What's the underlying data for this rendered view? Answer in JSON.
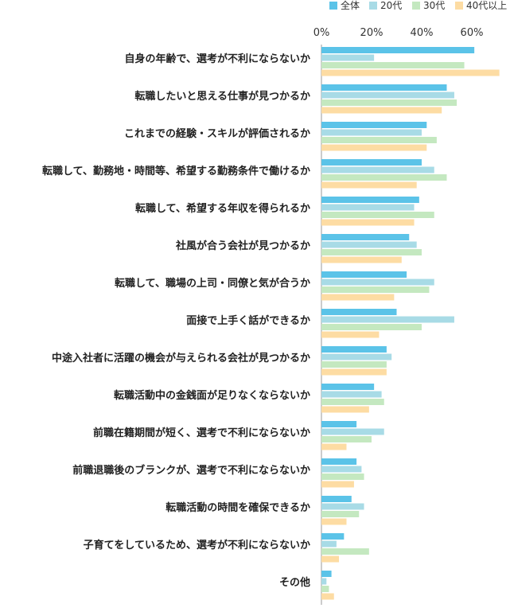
{
  "chart_data": {
    "type": "bar",
    "orientation": "horizontal",
    "categories": [
      "自身の年齢で、選考が不利にならないか",
      "転職したいと思える仕事が見つかるか",
      "これまでの経験・スキルが評価されるか",
      "転職して、勤務地・時間等、希望する勤務条件で働けるか",
      "転職して、希望する年収を得られるか",
      "社風が合う会社が見つかるか",
      "転職して、職場の上司・同僚と気が合うか",
      "面接で上手く話ができるか",
      "中途入社者に活躍の機会が与えられる会社が見つかるか",
      "転職活動中の金銭面が足りなくならないか",
      "前職在籍期間が短く、選考で不利にならないか",
      "前職退職後のブランクが、選考で不利にならないか",
      "転職活動の時間を確保できるか",
      "子育てをしているため、選考が不利にならないか",
      "その他"
    ],
    "series": [
      {
        "name": "全体",
        "color": "#5bc3e8",
        "values": [
          61,
          50,
          42,
          40,
          39,
          35,
          34,
          30,
          26,
          21,
          14,
          14,
          12,
          9,
          4
        ]
      },
      {
        "name": "20代",
        "color": "#a8dbe6",
        "values": [
          21,
          53,
          40,
          45,
          37,
          38,
          45,
          53,
          28,
          24,
          25,
          16,
          17,
          6,
          2
        ]
      },
      {
        "name": "30代",
        "color": "#c4e8c0",
        "values": [
          57,
          54,
          46,
          50,
          45,
          40,
          43,
          40,
          26,
          25,
          20,
          17,
          15,
          19,
          3
        ]
      },
      {
        "name": "40代以上",
        "color": "#fddca3",
        "values": [
          71,
          48,
          42,
          38,
          37,
          32,
          29,
          23,
          26,
          19,
          10,
          13,
          10,
          7,
          5
        ]
      }
    ],
    "xaxis": {
      "ticks": [
        "0%",
        "20%",
        "40%",
        "60%"
      ],
      "range": [
        0,
        75
      ]
    },
    "legend_placement": "top-right",
    "grid": false
  }
}
